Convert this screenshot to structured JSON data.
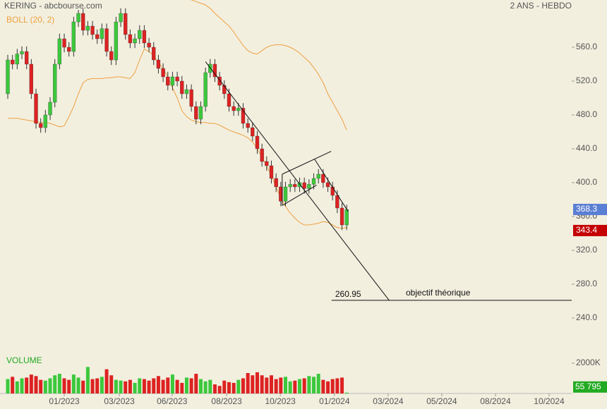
{
  "chart_data": {
    "type": "candlestick",
    "title": "KERING - abcbourse.com",
    "subtitle": "2 ANS - HEBDO",
    "xlim": [
      -1.65,
      119.8
    ],
    "xticks": [
      {
        "value": 12,
        "label": "01/2023"
      },
      {
        "value": 23.7,
        "label": "03/2023"
      },
      {
        "value": 34.9,
        "label": "06/2023"
      },
      {
        "value": 46.5,
        "label": "08/2023"
      },
      {
        "value": 57.9,
        "label": "10/2023"
      },
      {
        "value": 69.4,
        "label": "01/2024"
      },
      {
        "value": 80.8,
        "label": "03/2024"
      },
      {
        "value": 92.2,
        "label": "05/2024"
      },
      {
        "value": 103.6,
        "label": "08/2024"
      },
      {
        "value": 115,
        "label": "10/2024"
      }
    ],
    "ylim": [
      210,
      610
    ],
    "yticks": [
      {
        "value": 240,
        "label": "240.0"
      },
      {
        "value": 280,
        "label": "280.0"
      },
      {
        "value": 320,
        "label": "320.0"
      },
      {
        "value": 360,
        "label": "360.0"
      },
      {
        "value": 400,
        "label": "400.0"
      },
      {
        "value": 440,
        "label": "440.0"
      },
      {
        "value": 480,
        "label": "480.0"
      },
      {
        "value": 520,
        "label": "520.0"
      },
      {
        "value": 560,
        "label": "560.0"
      }
    ],
    "up_color": "#3cc83c",
    "down_color": "#dd2222",
    "open": [
      505,
      545,
      540,
      552,
      555,
      540,
      505,
      470,
      465,
      480,
      495,
      540,
      570,
      560,
      555,
      590,
      600,
      580,
      585,
      575,
      570,
      582,
      555,
      545,
      590,
      600,
      575,
      565,
      570,
      580,
      565,
      560,
      545,
      535,
      525,
      515,
      525,
      520,
      505,
      510,
      490,
      475,
      490,
      530,
      540,
      525,
      515,
      505,
      490,
      485,
      488,
      470,
      465,
      455,
      440,
      425,
      420,
      405,
      395,
      378,
      395,
      398,
      395,
      400,
      393,
      398,
      405,
      410,
      400,
      395,
      385,
      370,
      350
    ],
    "high": [
      551,
      551,
      558,
      561,
      561,
      546,
      511,
      476,
      486,
      501,
      546,
      576,
      576,
      566,
      596,
      604,
      606,
      591,
      591,
      581,
      588,
      588,
      561,
      596,
      606,
      606,
      581,
      576,
      586,
      586,
      571,
      566,
      551,
      541,
      531,
      531,
      531,
      526,
      516,
      516,
      496,
      496,
      536,
      546,
      546,
      531,
      521,
      511,
      496,
      494,
      494,
      476,
      471,
      461,
      446,
      431,
      426,
      411,
      401,
      401,
      404,
      404,
      406,
      406,
      404,
      411,
      416,
      416,
      406,
      401,
      391,
      376,
      374
    ],
    "low": [
      499,
      534,
      534,
      546,
      534,
      499,
      464,
      459,
      459,
      474,
      489,
      534,
      554,
      549,
      549,
      584,
      574,
      574,
      569,
      564,
      564,
      549,
      539,
      539,
      584,
      569,
      559,
      559,
      564,
      559,
      554,
      539,
      529,
      519,
      509,
      509,
      514,
      499,
      499,
      484,
      469,
      469,
      484,
      524,
      519,
      509,
      499,
      484,
      479,
      479,
      464,
      459,
      449,
      434,
      419,
      414,
      399,
      389,
      372,
      372,
      389,
      389,
      389,
      387,
      387,
      392,
      399,
      394,
      389,
      379,
      364,
      344,
      344
    ],
    "close": [
      545,
      540,
      552,
      555,
      540,
      505,
      470,
      465,
      480,
      495,
      540,
      570,
      560,
      555,
      590,
      600,
      580,
      585,
      575,
      570,
      582,
      555,
      545,
      590,
      600,
      575,
      565,
      570,
      580,
      565,
      560,
      545,
      535,
      525,
      515,
      525,
      520,
      505,
      510,
      490,
      475,
      490,
      530,
      540,
      525,
      515,
      505,
      490,
      485,
      488,
      470,
      465,
      455,
      440,
      425,
      420,
      405,
      395,
      378,
      395,
      398,
      395,
      400,
      393,
      398,
      405,
      410,
      400,
      395,
      385,
      370,
      350,
      368.3
    ],
    "bands": {
      "name": "BOLL (20, 2)",
      "color": "#f0a040",
      "upper": [
        640,
        641,
        642,
        642,
        643,
        643,
        642,
        641,
        640,
        640,
        639,
        638,
        637,
        636,
        636,
        635,
        634,
        633,
        632,
        631,
        630,
        630,
        629,
        628,
        628,
        627,
        627,
        626,
        626,
        625,
        625,
        624,
        623,
        622,
        621,
        620,
        619,
        618,
        617,
        616,
        614,
        612,
        610,
        606,
        600,
        595,
        590,
        585,
        578,
        570,
        562,
        556,
        553,
        552,
        556,
        560,
        562,
        563,
        563,
        562,
        560,
        557,
        553,
        548,
        543,
        536,
        528,
        518,
        505,
        495,
        485,
        475,
        462
      ],
      "lower": [
        476,
        476,
        476,
        475,
        474,
        473,
        472,
        471,
        471,
        470,
        468,
        466,
        467,
        478,
        490,
        505,
        518,
        522,
        523,
        523,
        523,
        524,
        524,
        525,
        525,
        524,
        523,
        530,
        545,
        558,
        555,
        550,
        542,
        535,
        525,
        512,
        500,
        485,
        478,
        474,
        472,
        471,
        471,
        470,
        470,
        468,
        465,
        462,
        460,
        458,
        456,
        453,
        448,
        440,
        430,
        420,
        408,
        395,
        382,
        372,
        364,
        358,
        353,
        350,
        350,
        351,
        352,
        354,
        353,
        350,
        347,
        346,
        347
      ]
    },
    "volume": {
      "name": "VOLUME",
      "ylim": [
        0,
        2000000
      ],
      "yticks": [
        {
          "value": 2000000,
          "label": "2000K"
        }
      ],
      "values": [
        950000,
        1100000,
        800000,
        1000000,
        1050000,
        1250000,
        1150000,
        900000,
        850000,
        1000000,
        1200000,
        1300000,
        1000000,
        900000,
        1250000,
        1050000,
        850000,
        1750000,
        950000,
        1000000,
        1100000,
        1600000,
        1200000,
        900000,
        850000,
        800000,
        900000,
        700000,
        1000000,
        950000,
        850000,
        1000000,
        1150000,
        900000,
        1050000,
        1250000,
        900000,
        700000,
        1050000,
        1000000,
        1300000,
        950000,
        800000,
        900000,
        600000,
        500000,
        850000,
        750000,
        700000,
        900000,
        1000000,
        1350000,
        1200000,
        1400000,
        1200000,
        1050000,
        1200000,
        950000,
        1050000,
        1100000,
        800000,
        850000,
        950000,
        1000000,
        1150000,
        1100000,
        1300000,
        900000,
        800000,
        950000,
        1000000,
        1050000,
        55795
      ],
      "last_label": {
        "value": 55795,
        "label": "55 795"
      },
      "last_color": "#22aa22"
    },
    "price_markers": [
      {
        "value": 368.3,
        "label": "368.3",
        "color": "#5b7fd4"
      },
      {
        "value": 343.4,
        "label": "343.4",
        "color": "#c40000"
      }
    ],
    "target": {
      "value": 260.95,
      "label": "260.95",
      "text": "objectif théorique",
      "x_start": 68.8
    },
    "trendlines": [
      {
        "x": [
          42,
          81
        ],
        "y": [
          543,
          260.95
        ]
      },
      {
        "x": [
          58.3,
          68.7
        ],
        "y": [
          410,
          437
        ]
      },
      {
        "x": [
          58.3,
          65.6
        ],
        "y": [
          373,
          397
        ]
      },
      {
        "x": [
          58.3,
          58.3
        ],
        "y": [
          373,
          410
        ]
      },
      {
        "x": [
          65.2,
          72.3
        ],
        "y": [
          427.5,
          366
        ]
      }
    ]
  }
}
